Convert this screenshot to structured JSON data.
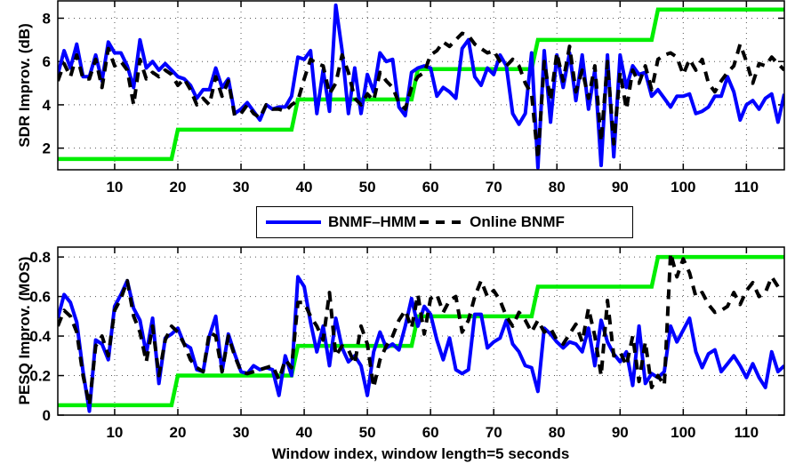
{
  "colors": {
    "bnmf_hmm": "#0000ff",
    "online_bnmf": "#000000",
    "step": "#00ee00",
    "grid": "#555555",
    "axis": "#000000"
  },
  "legend": {
    "items": [
      {
        "label": "BNMF–HMM",
        "style": "solid",
        "color": "#0000ff"
      },
      {
        "label": "Online BNMF",
        "style": "dashed",
        "color": "#000000"
      }
    ]
  },
  "chart_data": [
    {
      "type": "line",
      "title": "",
      "xlabel": "",
      "ylabel": "SDR Improv. (dB)",
      "xlim": [
        1,
        116
      ],
      "ylim": [
        1,
        8.8
      ],
      "xticks": [
        10,
        20,
        30,
        40,
        50,
        60,
        70,
        80,
        90,
        100,
        110
      ],
      "yticks": [
        2,
        4,
        6,
        8
      ],
      "grid": true,
      "series": [
        {
          "name": "BNMF-HMM",
          "style": "solid",
          "color": "#0000ff",
          "x_start": 1,
          "values": [
            5.4,
            6.5,
            5.7,
            6.8,
            5.3,
            5.3,
            6.3,
            5.1,
            6.9,
            6.4,
            6.4,
            5.8,
            4.8,
            7.0,
            5.7,
            6.0,
            5.6,
            5.9,
            5.6,
            5.3,
            5.2,
            4.9,
            4.3,
            4.7,
            4.7,
            5.7,
            4.8,
            5.2,
            3.6,
            3.8,
            4.1,
            3.7,
            3.3,
            4.0,
            3.8,
            3.9,
            3.9,
            4.4,
            6.2,
            6.1,
            6.5,
            3.6,
            5.6,
            3.7,
            8.6,
            6.5,
            3.6,
            5.7,
            3.6,
            5.4,
            4.6,
            6.4,
            6.0,
            6.1,
            3.9,
            3.5,
            5.5,
            5.7,
            5.8,
            5.7,
            4.4,
            4.8,
            4.6,
            4.3,
            6.6,
            7.0,
            5.3,
            4.9,
            5.7,
            5.4,
            6.3,
            5.8,
            3.6,
            3.1,
            3.6,
            6.4,
            1.1,
            6.5,
            3.2,
            6.3,
            4.8,
            6.4,
            4.2,
            6.3,
            3.8,
            5.6,
            1.2,
            6.3,
            1.6,
            6.3,
            4.8,
            5.8,
            5.4,
            5.5,
            4.4,
            4.7,
            4.3,
            3.9,
            4.4,
            4.4,
            4.5,
            3.6,
            3.7,
            3.9,
            4.4,
            4.4,
            5.3,
            4.6,
            3.3,
            4.0,
            4.2,
            3.8,
            4.3,
            4.5,
            3.2,
            4.5
          ],
          "note": "values indexed from x=1"
        },
        {
          "name": "Online BNMF",
          "style": "dashed",
          "color": "#000000",
          "x_start": 1,
          "values": [
            5.1,
            5.9,
            5.3,
            6.3,
            5.2,
            5.2,
            6.1,
            4.8,
            6.6,
            5.8,
            6.0,
            5.6,
            4.0,
            6.1,
            5.2,
            5.5,
            5.3,
            5.6,
            5.4,
            4.9,
            5.2,
            4.7,
            4.0,
            4.3,
            4.0,
            5.3,
            4.4,
            5.1,
            3.5,
            3.6,
            4.0,
            3.6,
            3.4,
            4.0,
            3.8,
            3.8,
            3.7,
            4.0,
            4.2,
            5.2,
            6.1,
            5.9,
            5.8,
            4.5,
            5.0,
            6.3,
            5.5,
            4.3,
            4.0,
            4.5,
            4.2,
            5.5,
            5.1,
            4.8,
            4.1,
            3.8,
            4.8,
            5.3,
            5.5,
            6.3,
            6.5,
            6.9,
            6.7,
            7.0,
            7.3,
            7.2,
            6.8,
            6.6,
            6.4,
            6.5,
            6.0,
            5.8,
            6.1,
            5.8,
            5.0,
            4.5,
            1.5,
            6.0,
            4.2,
            6.4,
            5.1,
            6.7,
            4.6,
            5.6,
            4.3,
            5.8,
            2.3,
            6.0,
            2.2,
            5.5,
            3.8,
            5.6,
            5.0,
            5.8,
            4.7,
            6.1,
            6.3,
            6.4,
            6.2,
            5.4,
            6.1,
            5.6,
            6.1,
            5.0,
            4.6,
            5.1,
            5.5,
            5.8,
            6.8,
            6.0,
            5.0,
            5.9,
            5.8,
            6.2,
            5.9,
            5.6
          ],
          "note": "values indexed from x=1"
        },
        {
          "name": "Step reference",
          "style": "solid",
          "color": "#00ee00",
          "steps": [
            {
              "x0": 1,
              "x1": 19,
              "y": 1.5
            },
            {
              "x0": 20,
              "x1": 38,
              "y": 2.85
            },
            {
              "x0": 39,
              "x1": 57,
              "y": 4.25
            },
            {
              "x0": 58,
              "x1": 76,
              "y": 5.65
            },
            {
              "x0": 77,
              "x1": 95,
              "y": 7.0
            },
            {
              "x0": 96,
              "x1": 116,
              "y": 8.4
            }
          ]
        }
      ]
    },
    {
      "type": "line",
      "title": "",
      "xlabel": "Window index, window length=5 seconds",
      "ylabel": "PESQ Improv. (MOS)",
      "xlim": [
        1,
        116
      ],
      "ylim": [
        0,
        0.85
      ],
      "xticks": [
        10,
        20,
        30,
        40,
        50,
        60,
        70,
        80,
        90,
        100,
        110
      ],
      "yticks": [
        0,
        0.2,
        0.4,
        0.6,
        0.8
      ],
      "grid": true,
      "series": [
        {
          "name": "BNMF-HMM",
          "style": "solid",
          "color": "#0000ff",
          "x_start": 1,
          "values": [
            0.49,
            0.61,
            0.57,
            0.47,
            0.22,
            0.02,
            0.38,
            0.36,
            0.28,
            0.55,
            0.61,
            0.68,
            0.54,
            0.48,
            0.31,
            0.49,
            0.16,
            0.39,
            0.41,
            0.44,
            0.36,
            0.34,
            0.23,
            0.22,
            0.4,
            0.5,
            0.22,
            0.41,
            0.31,
            0.22,
            0.21,
            0.25,
            0.23,
            0.24,
            0.23,
            0.1,
            0.3,
            0.2,
            0.7,
            0.65,
            0.47,
            0.32,
            0.45,
            0.25,
            0.49,
            0.34,
            0.27,
            0.3,
            0.25,
            0.1,
            0.32,
            0.42,
            0.34,
            0.36,
            0.33,
            0.45,
            0.59,
            0.45,
            0.55,
            0.51,
            0.38,
            0.28,
            0.39,
            0.23,
            0.21,
            0.23,
            0.51,
            0.51,
            0.34,
            0.37,
            0.39,
            0.48,
            0.36,
            0.32,
            0.25,
            0.24,
            0.12,
            0.44,
            0.41,
            0.37,
            0.34,
            0.37,
            0.36,
            0.32,
            0.44,
            0.25,
            0.48,
            0.37,
            0.31,
            0.27,
            0.32,
            0.15,
            0.45,
            0.16,
            0.21,
            0.19,
            0.22,
            0.45,
            0.37,
            0.43,
            0.49,
            0.32,
            0.24,
            0.31,
            0.33,
            0.22,
            0.26,
            0.3,
            0.25,
            0.19,
            0.26,
            0.19,
            0.14,
            0.32,
            0.22,
            0.25
          ],
          "note": "values indexed from x=1"
        },
        {
          "name": "Online BNMF",
          "style": "dashed",
          "color": "#000000",
          "x_start": 1,
          "values": [
            0.45,
            0.53,
            0.5,
            0.42,
            0.2,
            0.05,
            0.35,
            0.4,
            0.3,
            0.53,
            0.59,
            0.68,
            0.5,
            0.42,
            0.27,
            0.45,
            0.2,
            0.38,
            0.45,
            0.42,
            0.36,
            0.28,
            0.24,
            0.22,
            0.42,
            0.4,
            0.22,
            0.4,
            0.3,
            0.22,
            0.21,
            0.22,
            0.23,
            0.24,
            0.25,
            0.18,
            0.28,
            0.24,
            0.57,
            0.57,
            0.5,
            0.45,
            0.38,
            0.62,
            0.3,
            0.35,
            0.33,
            0.26,
            0.45,
            0.36,
            0.14,
            0.28,
            0.35,
            0.4,
            0.48,
            0.53,
            0.44,
            0.61,
            0.41,
            0.59,
            0.61,
            0.52,
            0.58,
            0.6,
            0.42,
            0.48,
            0.6,
            0.68,
            0.6,
            0.63,
            0.58,
            0.5,
            0.45,
            0.52,
            0.48,
            0.42,
            0.48,
            0.42,
            0.44,
            0.38,
            0.36,
            0.41,
            0.46,
            0.37,
            0.54,
            0.4,
            0.2,
            0.58,
            0.3,
            0.32,
            0.25,
            0.4,
            0.17,
            0.37,
            0.14,
            0.2,
            0.15,
            0.82,
            0.7,
            0.79,
            0.72,
            0.6,
            0.62,
            0.56,
            0.52,
            0.53,
            0.55,
            0.62,
            0.56,
            0.63,
            0.67,
            0.6,
            0.62,
            0.7,
            0.65
          ],
          "note": "values indexed from x=1"
        },
        {
          "name": "Step reference",
          "style": "solid",
          "color": "#00ee00",
          "steps": [
            {
              "x0": 1,
              "x1": 19,
              "y": 0.05
            },
            {
              "x0": 20,
              "x1": 38,
              "y": 0.2
            },
            {
              "x0": 39,
              "x1": 57,
              "y": 0.35
            },
            {
              "x0": 58,
              "x1": 76,
              "y": 0.5
            },
            {
              "x0": 77,
              "x1": 95,
              "y": 0.65
            },
            {
              "x0": 96,
              "x1": 116,
              "y": 0.8
            }
          ]
        }
      ]
    }
  ]
}
